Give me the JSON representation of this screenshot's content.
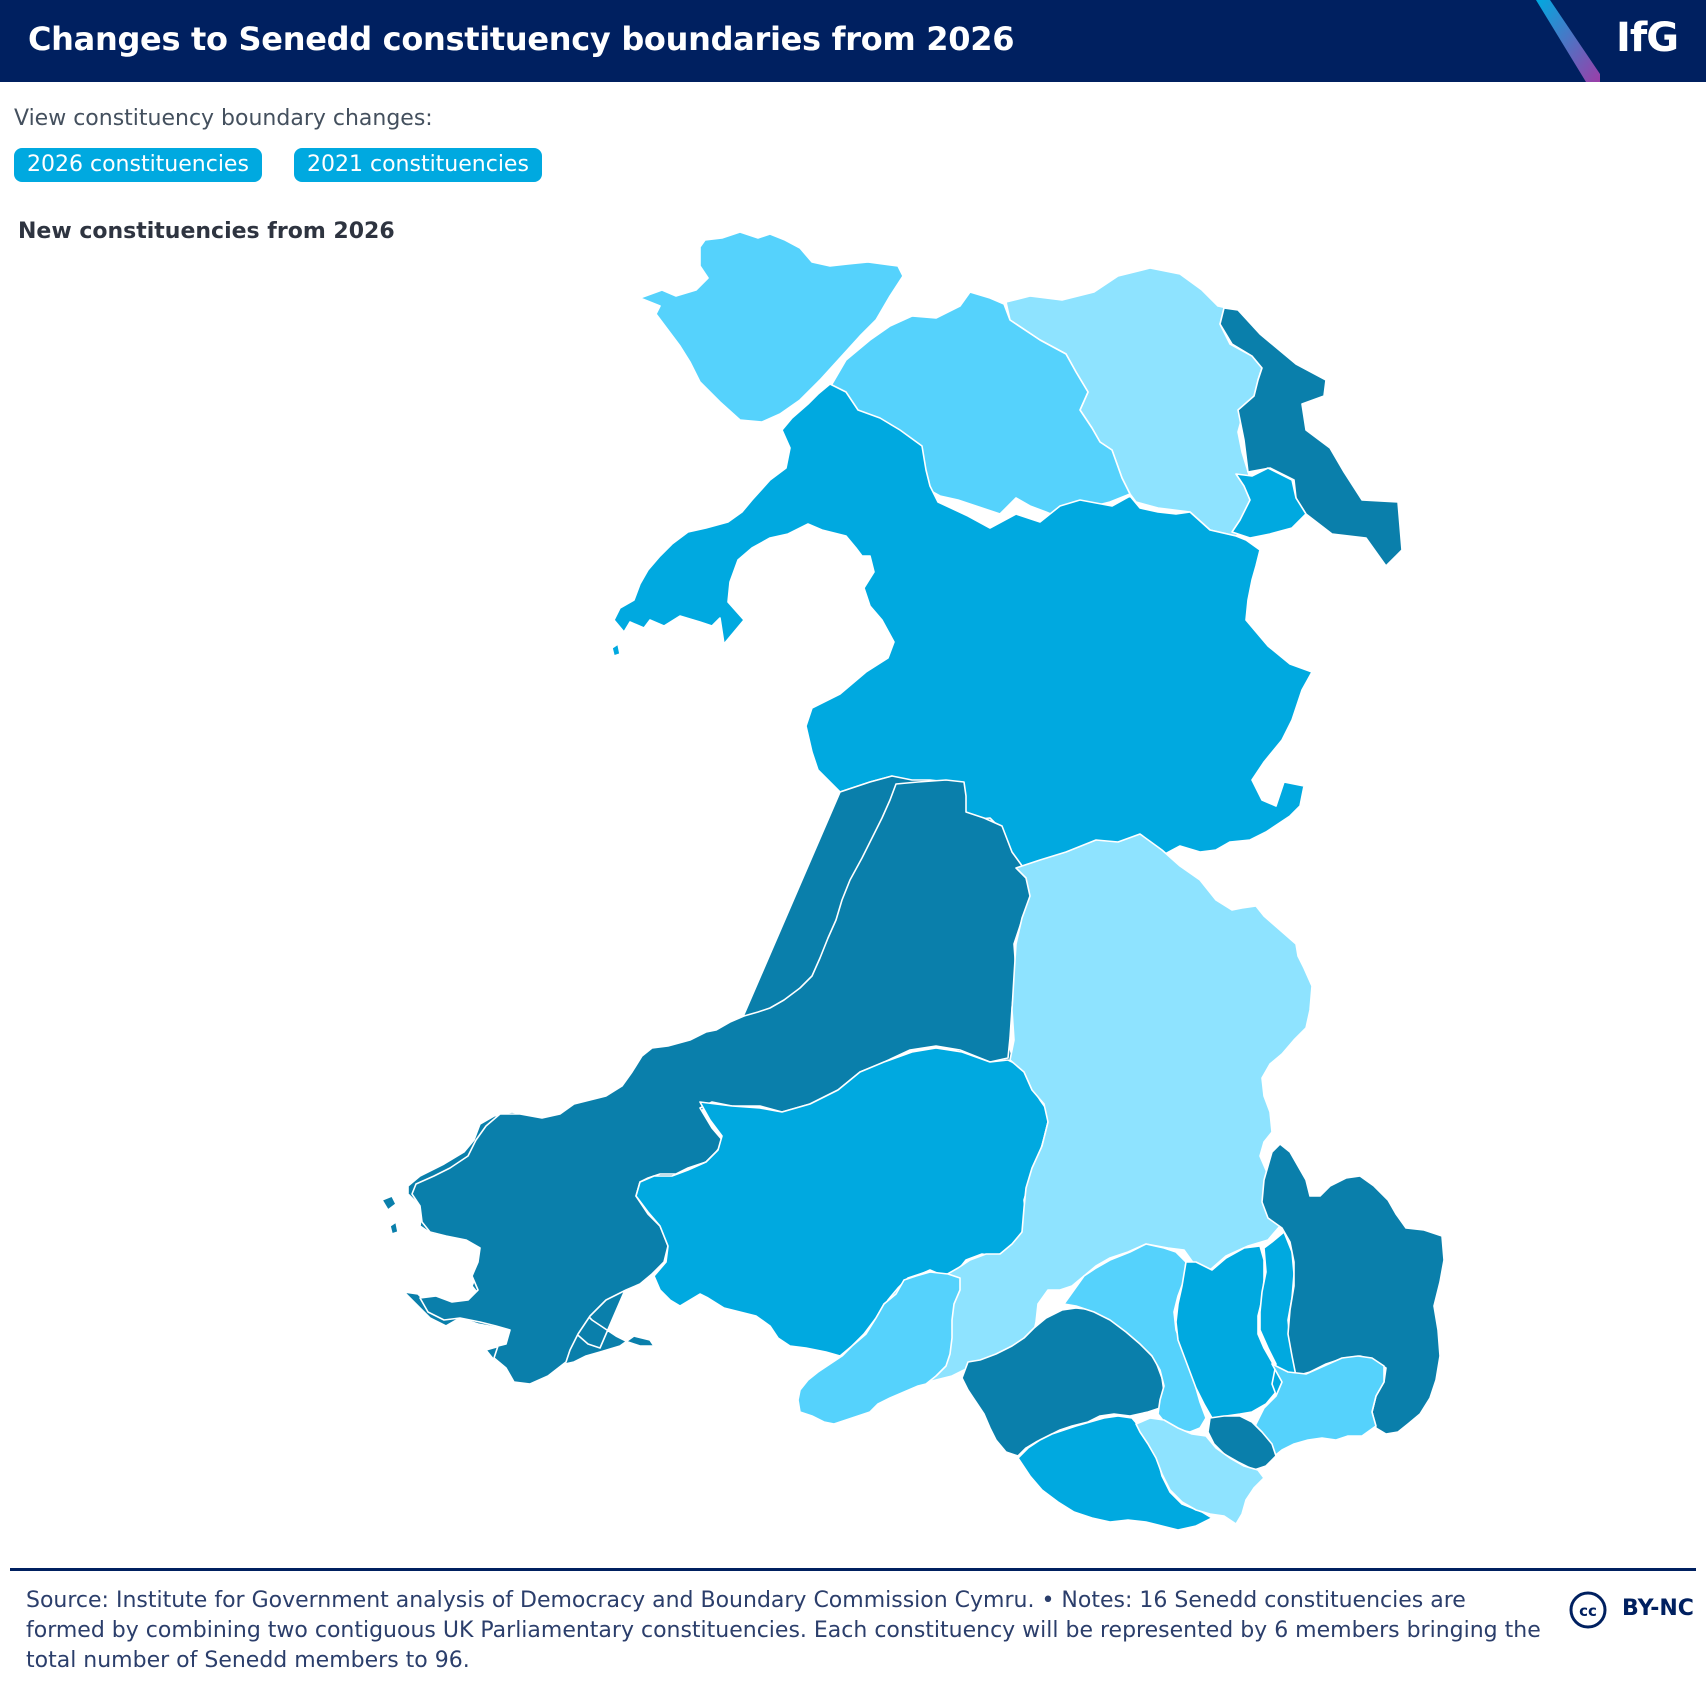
{
  "header": {
    "title": "Changes to Senedd constituency boundaries from 2026",
    "logo": "IfG"
  },
  "controls": {
    "prompt": "View constituency boundary changes:",
    "buttons": [
      "2026 constituencies",
      "2021 constituencies"
    ]
  },
  "map": {
    "subtitle": "New constituencies from 2026",
    "colors": {
      "darkest": "#0a7fab",
      "dark": "#00a9e0",
      "medium": "#55d2fc",
      "light": "#8ee3ff",
      "border": "#ffffff"
    }
  },
  "footer": {
    "source_notes": "Source: Institute for Government analysis of Democracy and Boundary Commission Cymru. • Notes: 16 Senedd constituencies are formed by combining two contiguous UK Parliamentary constituencies. Each constituency will be represented by 6 members bringing the total number of Senedd members to 96.",
    "license": "BY-NC",
    "license_icon": "creative-commons-icon"
  }
}
